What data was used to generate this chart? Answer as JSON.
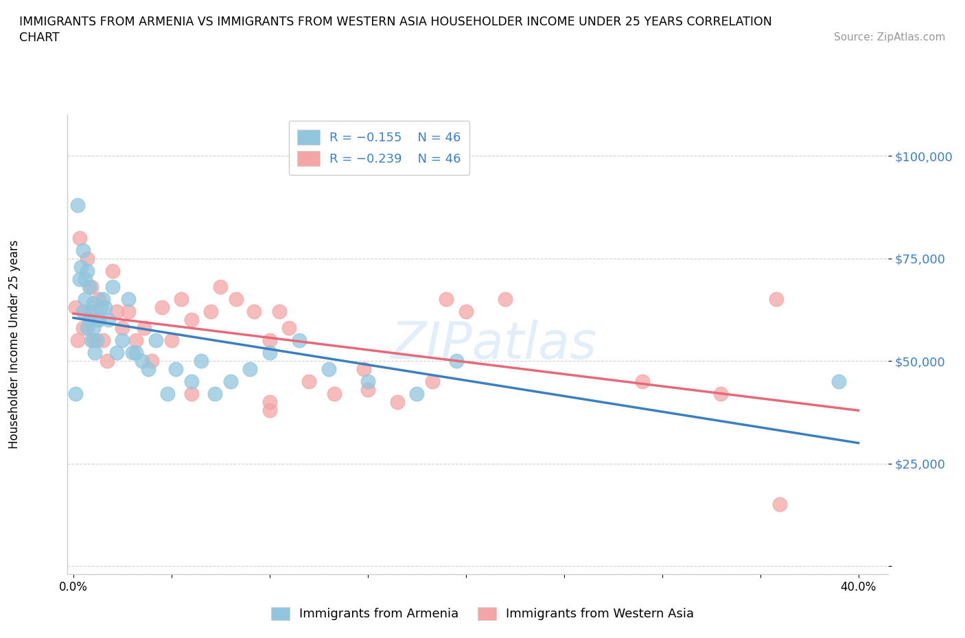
{
  "title_line1": "IMMIGRANTS FROM ARMENIA VS IMMIGRANTS FROM WESTERN ASIA HOUSEHOLDER INCOME UNDER 25 YEARS CORRELATION",
  "title_line2": "CHART",
  "source_text": "Source: ZipAtlas.com",
  "ylabel": "Householder Income Under 25 years",
  "y_ticks": [
    0,
    25000,
    50000,
    75000,
    100000
  ],
  "y_tick_labels": [
    "",
    "$25,000",
    "$50,000",
    "$75,000",
    "$100,000"
  ],
  "x_ticks": [
    0.0,
    0.05,
    0.1,
    0.15,
    0.2,
    0.25,
    0.3,
    0.35,
    0.4
  ],
  "x_tick_labels": [
    "0.0%",
    "",
    "",
    "",
    "",
    "",
    "",
    "",
    "40.0%"
  ],
  "xlim": [
    -0.003,
    0.415
  ],
  "ylim": [
    -2000,
    110000
  ],
  "color_armenia": "#92c5de",
  "color_western_asia": "#f4a6a6",
  "color_line_armenia": "#3a7fc1",
  "color_line_western_asia": "#e8687a",
  "label_armenia": "Immigrants from Armenia",
  "label_western_asia": "Immigrants from Western Asia",
  "armenia_x": [
    0.001,
    0.002,
    0.003,
    0.004,
    0.005,
    0.005,
    0.006,
    0.006,
    0.007,
    0.007,
    0.008,
    0.008,
    0.009,
    0.009,
    0.01,
    0.01,
    0.011,
    0.012,
    0.013,
    0.014,
    0.015,
    0.016,
    0.018,
    0.02,
    0.022,
    0.025,
    0.028,
    0.03,
    0.032,
    0.035,
    0.038,
    0.042,
    0.048,
    0.052,
    0.06,
    0.065,
    0.072,
    0.08,
    0.09,
    0.1,
    0.115,
    0.13,
    0.15,
    0.175,
    0.195,
    0.39
  ],
  "armenia_y": [
    42000,
    88000,
    70000,
    73000,
    77000,
    62000,
    65000,
    70000,
    58000,
    72000,
    60000,
    68000,
    55000,
    62000,
    58000,
    64000,
    52000,
    55000,
    60000,
    63000,
    65000,
    63000,
    60000,
    68000,
    52000,
    55000,
    65000,
    52000,
    52000,
    50000,
    48000,
    55000,
    42000,
    48000,
    45000,
    50000,
    42000,
    45000,
    48000,
    52000,
    55000,
    48000,
    45000,
    42000,
    50000,
    45000
  ],
  "western_asia_x": [
    0.001,
    0.002,
    0.003,
    0.005,
    0.007,
    0.008,
    0.009,
    0.01,
    0.012,
    0.013,
    0.015,
    0.017,
    0.02,
    0.022,
    0.025,
    0.028,
    0.032,
    0.036,
    0.04,
    0.045,
    0.05,
    0.055,
    0.06,
    0.07,
    0.075,
    0.083,
    0.092,
    0.1,
    0.11,
    0.12,
    0.133,
    0.148,
    0.165,
    0.183,
    0.2,
    0.22,
    0.1,
    0.15,
    0.19,
    0.29,
    0.33,
    0.358,
    0.06,
    0.1,
    0.36,
    0.105
  ],
  "western_asia_y": [
    63000,
    55000,
    80000,
    58000,
    75000,
    62000,
    68000,
    55000,
    60000,
    65000,
    55000,
    50000,
    72000,
    62000,
    58000,
    62000,
    55000,
    58000,
    50000,
    63000,
    55000,
    65000,
    60000,
    62000,
    68000,
    65000,
    62000,
    55000,
    58000,
    45000,
    42000,
    48000,
    40000,
    45000,
    62000,
    65000,
    38000,
    43000,
    65000,
    45000,
    42000,
    65000,
    42000,
    40000,
    15000,
    62000
  ]
}
